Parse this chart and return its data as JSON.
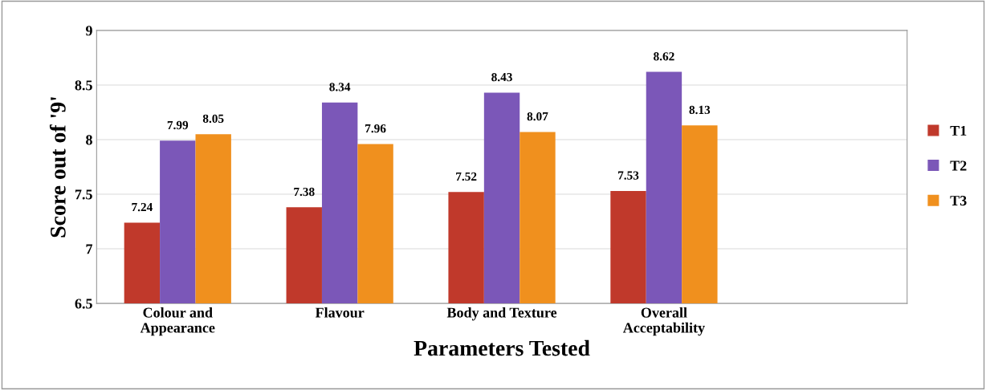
{
  "chart_data": {
    "type": "bar",
    "xlabel": "Parameters Tested",
    "ylabel": "Score out of '9'",
    "categories": [
      "Colour and\nAppearance",
      "Flavour",
      "Body and Texture",
      "Overall\nAcceptability",
      null
    ],
    "series": [
      {
        "name": "T1",
        "color": "#c0392b",
        "values": [
          7.24,
          7.38,
          7.52,
          7.53,
          null
        ]
      },
      {
        "name": "T2",
        "color": "#7b57b8",
        "values": [
          7.99,
          8.34,
          8.43,
          8.62,
          null
        ]
      },
      {
        "name": "T3",
        "color": "#f0901e",
        "values": [
          8.05,
          7.96,
          8.07,
          8.13,
          null
        ]
      }
    ],
    "ylim": [
      6.5,
      9
    ],
    "yticks": [
      6.5,
      7,
      7.5,
      8,
      8.5,
      9
    ],
    "grid": "y",
    "legend": "right",
    "data_labels": true
  }
}
